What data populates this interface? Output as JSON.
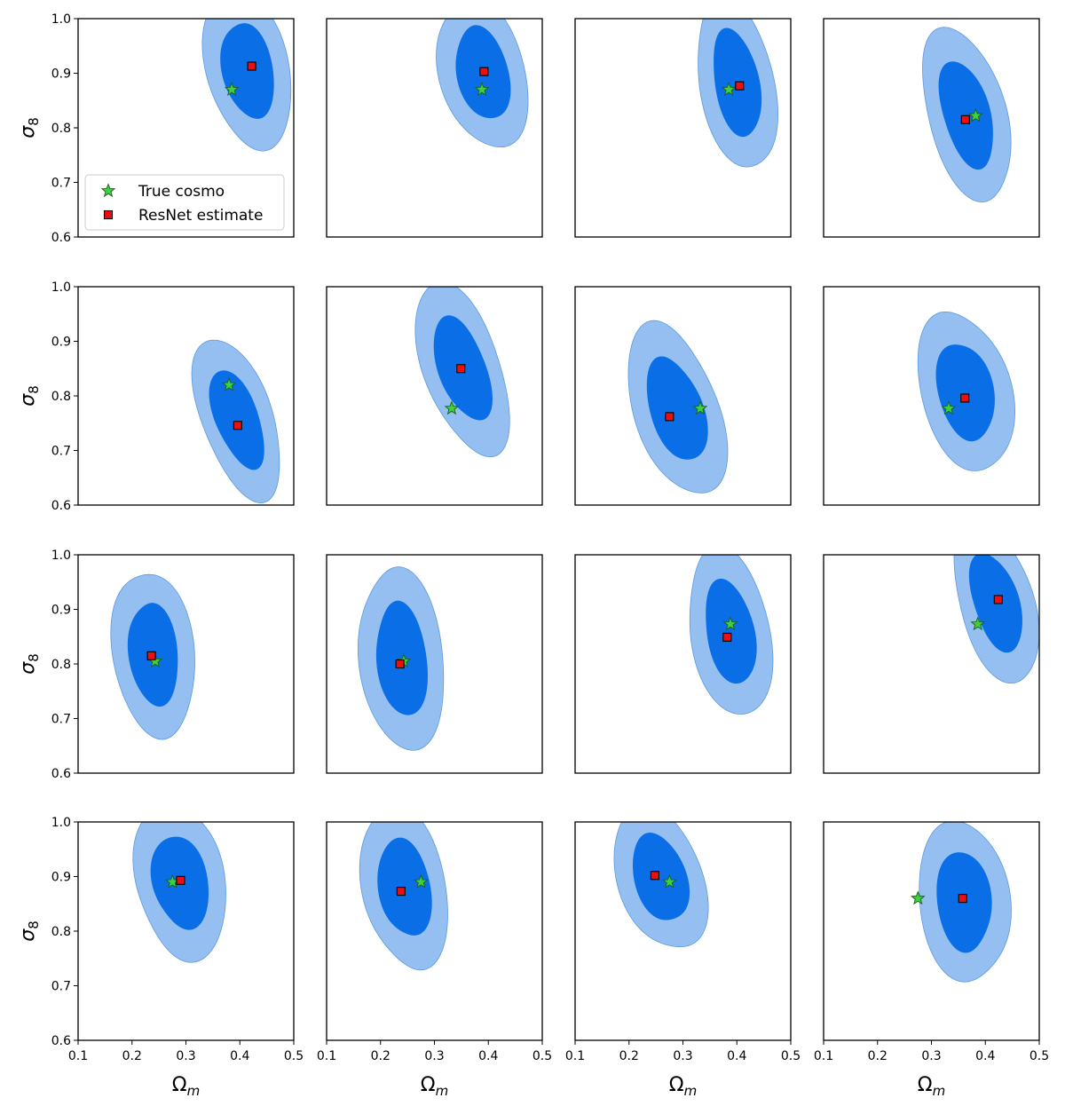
{
  "chart_data": {
    "type": "contour-grid",
    "rows": 4,
    "cols": 4,
    "xlabel_sym": "Ω",
    "xlabel_sub": "m",
    "ylabel_sym": "σ",
    "ylabel_sub": "8",
    "xlim": [
      0.1,
      0.5
    ],
    "ylim": [
      0.6,
      1.0
    ],
    "xticks": [
      0.1,
      0.2,
      0.3,
      0.4,
      0.5
    ],
    "yticks": [
      0.6,
      0.7,
      0.8,
      0.9,
      1.0
    ],
    "xtick_labels": [
      "0.1",
      "0.2",
      "0.3",
      "0.4",
      "0.5"
    ],
    "ytick_labels": [
      "0.6",
      "0.7",
      "0.8",
      "0.9",
      "1.0"
    ],
    "legend": [
      {
        "marker": "star",
        "label": "True cosmo"
      },
      {
        "marker": "square",
        "label": "ResNet estimate"
      }
    ],
    "legend_panel": 0,
    "legend_loc": "lower-left",
    "colors": {
      "inner_contour": "#0a6ee6",
      "outer_contour": "#94bff0",
      "contour_edge": "#5d9ae0",
      "true_marker": "#3fcf3f",
      "estimate_marker": "#e81010"
    },
    "panels": [
      {
        "true": [
          0.385,
          0.87
        ],
        "estimate": [
          0.422,
          0.913
        ],
        "center": [
          0.415,
          0.905
        ],
        "sx": 0.032,
        "sy": 0.061,
        "rho": -0.3
      },
      {
        "true": [
          0.388,
          0.87
        ],
        "estimate": [
          0.392,
          0.903
        ],
        "center": [
          0.39,
          0.9
        ],
        "sx": 0.034,
        "sy": 0.058,
        "rho": -0.35
      },
      {
        "true": [
          0.385,
          0.87
        ],
        "estimate": [
          0.405,
          0.877
        ],
        "center": [
          0.4,
          0.882
        ],
        "sx": 0.031,
        "sy": 0.065,
        "rho": -0.4
      },
      {
        "true": [
          0.382,
          0.822
        ],
        "estimate": [
          0.363,
          0.815
        ],
        "center": [
          0.365,
          0.825
        ],
        "sx": 0.035,
        "sy": 0.063,
        "rho": -0.45
      },
      {
        "true": [
          0.38,
          0.82
        ],
        "estimate": [
          0.396,
          0.746
        ],
        "center": [
          0.395,
          0.758
        ],
        "sx": 0.034,
        "sy": 0.058,
        "rho": -0.5
      },
      {
        "true": [
          0.332,
          0.777
        ],
        "estimate": [
          0.349,
          0.85
        ],
        "center": [
          0.352,
          0.85
        ],
        "sx": 0.035,
        "sy": 0.063,
        "rho": -0.45
      },
      {
        "true": [
          0.332,
          0.777
        ],
        "estimate": [
          0.275,
          0.762
        ],
        "center": [
          0.288,
          0.775
        ],
        "sx": 0.036,
        "sy": 0.065,
        "rho": -0.4
      },
      {
        "true": [
          0.332,
          0.777
        ],
        "estimate": [
          0.362,
          0.796
        ],
        "center": [
          0.363,
          0.808
        ],
        "sx": 0.035,
        "sy": 0.062,
        "rho": -0.3
      },
      {
        "true": [
          0.243,
          0.805
        ],
        "estimate": [
          0.236,
          0.815
        ],
        "center": [
          0.24,
          0.818
        ],
        "sx": 0.031,
        "sy": 0.064,
        "rho": -0.25
      },
      {
        "true": [
          0.243,
          0.805
        ],
        "estimate": [
          0.236,
          0.8
        ],
        "center": [
          0.24,
          0.808
        ],
        "sx": 0.033,
        "sy": 0.068,
        "rho": -0.25
      },
      {
        "true": [
          0.388,
          0.873
        ],
        "estimate": [
          0.382,
          0.849
        ],
        "center": [
          0.388,
          0.858
        ],
        "sx": 0.033,
        "sy": 0.061,
        "rho": -0.3
      },
      {
        "true": [
          0.386,
          0.873
        ],
        "estimate": [
          0.424,
          0.918
        ],
        "center": [
          0.42,
          0.913
        ],
        "sx": 0.033,
        "sy": 0.058,
        "rho": -0.4
      },
      {
        "true": [
          0.275,
          0.89
        ],
        "estimate": [
          0.29,
          0.893
        ],
        "center": [
          0.29,
          0.89
        ],
        "sx": 0.035,
        "sy": 0.057,
        "rho": -0.15
      },
      {
        "true": [
          0.275,
          0.89
        ],
        "estimate": [
          0.238,
          0.873
        ],
        "center": [
          0.245,
          0.88
        ],
        "sx": 0.032,
        "sy": 0.062,
        "rho": -0.2
      },
      {
        "true": [
          0.275,
          0.89
        ],
        "estimate": [
          0.248,
          0.902
        ],
        "center": [
          0.258,
          0.898
        ],
        "sx": 0.034,
        "sy": 0.056,
        "rho": -0.35
      },
      {
        "true": [
          0.275,
          0.86
        ],
        "estimate": [
          0.358,
          0.86
        ],
        "center": [
          0.36,
          0.855
        ],
        "sx": 0.034,
        "sy": 0.062,
        "rho": -0.2
      }
    ]
  }
}
